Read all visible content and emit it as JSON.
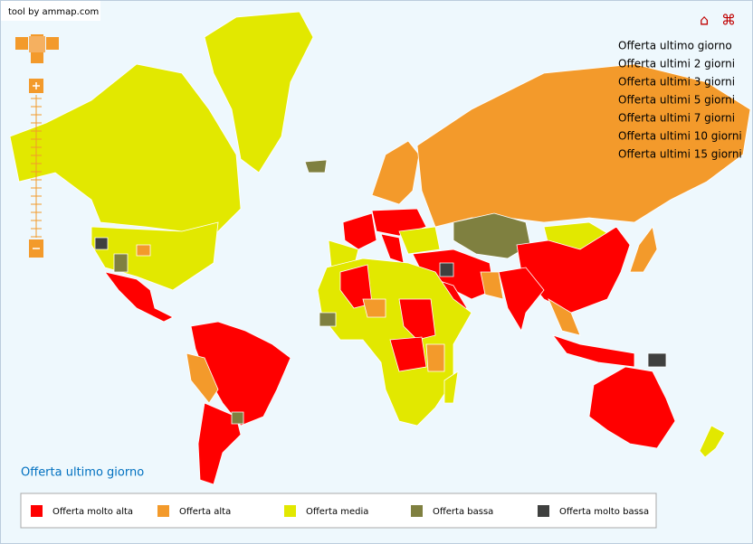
{
  "credit": "tool by ammap.com",
  "menu": [
    "Offerta ultimo giorno",
    "Offerta ultimi 2 giorni",
    "Offerta ultimi 3 giorni",
    "Offerta ultimi 5 giorni",
    "Offerta ultimi 7 giorni",
    "Offerta ultimi 10 giorni",
    "Offerta ultimi 15 giorni"
  ],
  "map_title": "Offerta ultimo giorno",
  "legend": [
    {
      "label": "Offerta molto alta",
      "color": "#ff0000"
    },
    {
      "label": "Offerta alta",
      "color": "#f39a2b"
    },
    {
      "label": "Offerta media",
      "color": "#e2e800"
    },
    {
      "label": "Offerta bassa",
      "color": "#7f8040"
    },
    {
      "label": "Offerta molto bassa",
      "color": "#3f403f"
    }
  ]
}
